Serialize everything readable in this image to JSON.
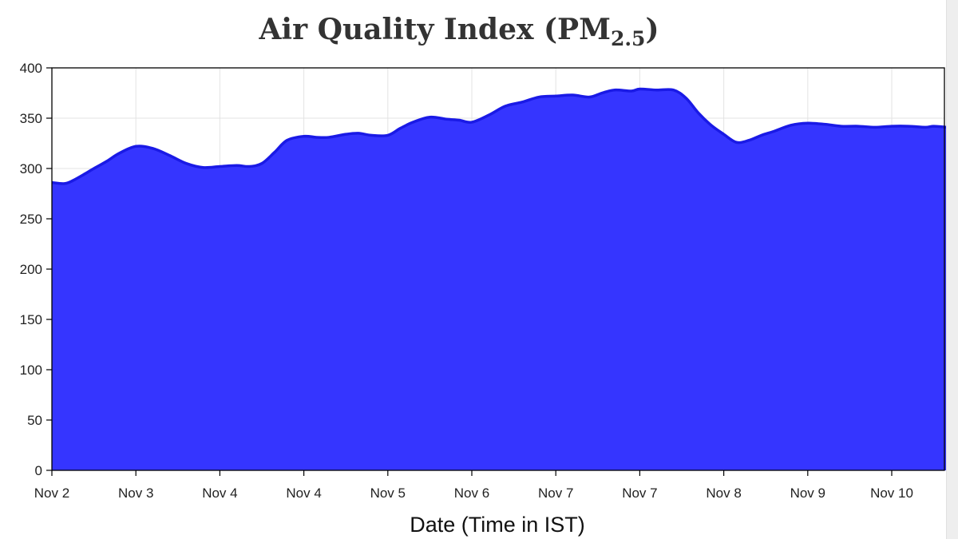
{
  "chart_data": {
    "type": "area",
    "title": "Air Quality Index (PM",
    "title_subscript": "2.5",
    "title_close": ")",
    "xlabel": "Date (Time in IST)",
    "ylabel": "",
    "ylim": [
      0,
      400
    ],
    "yticks": [
      0,
      50,
      100,
      150,
      200,
      250,
      300,
      350,
      400
    ],
    "xlim": [
      0,
      10.65
    ],
    "xticks": [
      {
        "x": 0,
        "label": "Nov 2"
      },
      {
        "x": 1,
        "label": "Nov 3"
      },
      {
        "x": 2,
        "label": "Nov 4"
      },
      {
        "x": 3,
        "label": "Nov 4"
      },
      {
        "x": 4,
        "label": "Nov 5"
      },
      {
        "x": 5,
        "label": "Nov 6"
      },
      {
        "x": 6,
        "label": "Nov 7"
      },
      {
        "x": 7,
        "label": "Nov 7"
      },
      {
        "x": 8,
        "label": "Nov 8"
      },
      {
        "x": 9,
        "label": "Nov 9"
      },
      {
        "x": 10,
        "label": "Nov 10"
      }
    ],
    "grid": true,
    "fill_color": "#3535ff",
    "line_color": "#1a1ae6",
    "series": [
      {
        "x": [
          0,
          0.15,
          0.25,
          0.4,
          0.5,
          0.65,
          0.8,
          1.0,
          1.2,
          1.4,
          1.6,
          1.8,
          2.0,
          2.2,
          2.35,
          2.5,
          2.65,
          2.8,
          3.0,
          3.15,
          3.3,
          3.5,
          3.65,
          3.8,
          4.0,
          4.15,
          4.3,
          4.5,
          4.7,
          4.85,
          5.0,
          5.2,
          5.4,
          5.6,
          5.8,
          6.0,
          6.2,
          6.4,
          6.55,
          6.7,
          6.9,
          7.0,
          7.2,
          7.4,
          7.55,
          7.7,
          7.85,
          8.0,
          8.15,
          8.3,
          8.45,
          8.6,
          8.8,
          9.0,
          9.2,
          9.4,
          9.6,
          9.8,
          10.0,
          10.2,
          10.4,
          10.5,
          10.65
        ],
        "y": [
          286,
          285,
          288,
          295,
          300,
          307,
          315,
          322,
          320,
          313,
          305,
          301,
          302,
          303,
          302,
          305,
          316,
          328,
          332,
          331,
          331,
          334,
          335,
          333,
          333,
          340,
          346,
          351,
          349,
          348,
          346,
          353,
          362,
          366,
          371,
          372,
          373,
          371,
          375,
          378,
          377,
          379,
          378,
          378,
          370,
          355,
          343,
          334,
          326,
          328,
          333,
          337,
          343,
          345,
          344,
          342,
          342,
          341,
          342,
          342,
          341,
          342,
          341
        ]
      }
    ]
  }
}
